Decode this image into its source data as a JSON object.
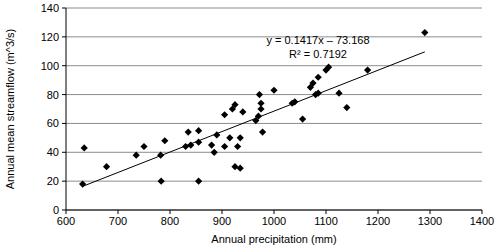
{
  "chart_data": {
    "type": "scatter",
    "x_label": "Annual precipitation (mm)",
    "y_label": "Annual mean streamflow (m^3/s)",
    "xlim": [
      600,
      1400
    ],
    "xticks": [
      600,
      700,
      800,
      900,
      1000,
      1100,
      1200,
      1300,
      1400
    ],
    "ylim": [
      0,
      140
    ],
    "yticks": [
      0,
      20,
      40,
      60,
      80,
      100,
      120,
      140
    ],
    "grid": true,
    "annotations": [
      "y = 0.1417x – 73.168",
      "R² = 0.7192"
    ],
    "series": [
      {
        "type": "scatter",
        "color": "#000000",
        "marker": "diamond",
        "x": [
          632,
          635,
          678,
          735,
          750,
          783,
          782,
          790,
          830,
          835,
          840,
          855,
          855,
          855,
          880,
          885,
          890,
          905,
          905,
          915,
          920,
          925,
          925,
          930,
          935,
          935,
          940,
          965,
          970,
          972,
          975,
          975,
          978,
          1000,
          1035,
          1040,
          1055,
          1070,
          1075,
          1085,
          1080,
          1085,
          1100,
          1105,
          1125,
          1140,
          1180,
          1290
        ],
        "values": [
          18,
          43,
          30,
          38,
          44,
          20,
          38,
          48,
          44,
          54,
          45,
          20,
          47,
          55,
          45,
          40,
          52,
          66,
          44,
          50,
          70,
          30,
          73,
          44,
          29,
          50,
          68,
          62,
          65,
          80,
          70,
          74,
          54,
          83,
          74,
          75,
          63,
          85,
          88,
          92,
          80,
          81,
          97,
          99,
          81,
          71,
          97,
          123
        ]
      },
      {
        "type": "line",
        "color": "#000000",
        "line_style": "solid",
        "x": [
          632,
          1290
        ],
        "values": [
          16.38,
          109.62
        ]
      }
    ]
  }
}
